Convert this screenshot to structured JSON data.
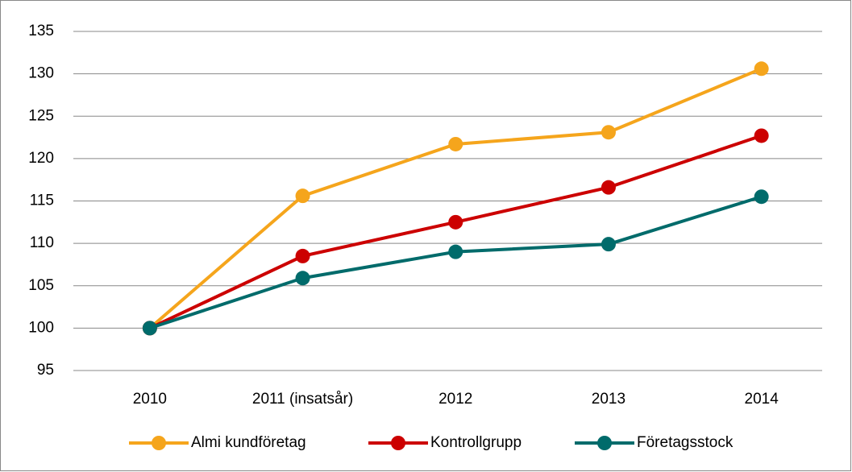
{
  "chart_data": {
    "type": "line",
    "categories": [
      "2010",
      "2011 (insatsår)",
      "2012",
      "2013",
      "2014"
    ],
    "series": [
      {
        "name": "Almi kundföretag",
        "color": "#f5a51c",
        "values": [
          100,
          115.6,
          121.7,
          123.1,
          130.6
        ]
      },
      {
        "name": "Kontrollgrupp",
        "color": "#cc0000",
        "values": [
          100,
          108.5,
          112.5,
          116.6,
          122.7
        ]
      },
      {
        "name": "Företagsstock",
        "color": "#006b6b",
        "values": [
          100,
          105.9,
          109.0,
          109.9,
          115.5
        ]
      }
    ],
    "ylim": [
      95,
      135
    ],
    "yticks": [
      95,
      100,
      105,
      110,
      115,
      120,
      125,
      130,
      135
    ],
    "grid": true,
    "legend": "bottom"
  }
}
